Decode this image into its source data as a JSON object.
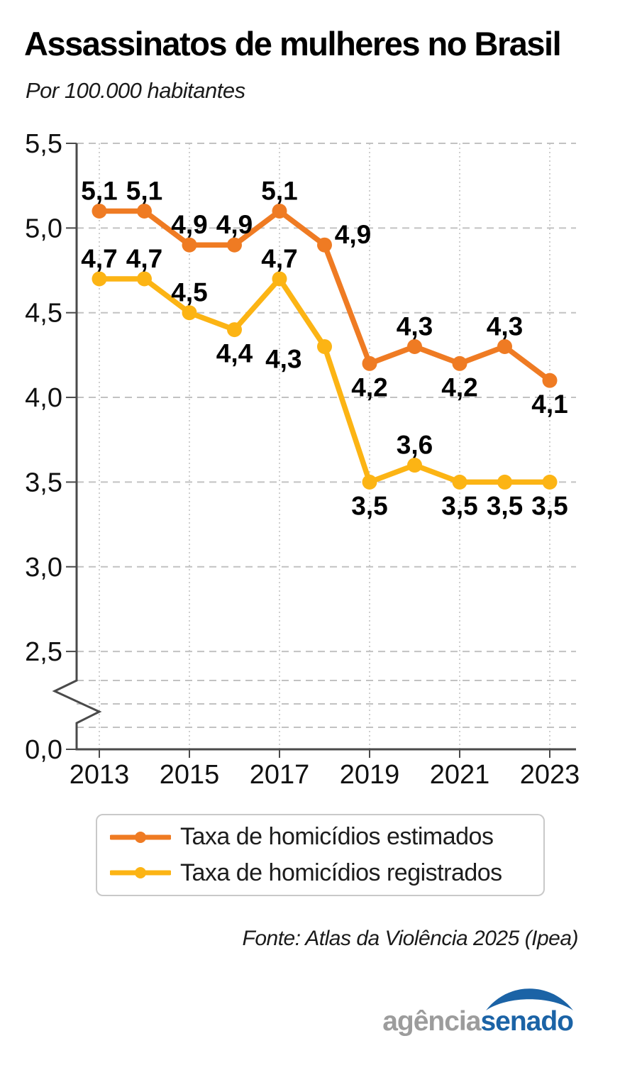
{
  "title": "Assassinatos de mulheres no Brasil",
  "subtitle": "Por 100.000 habitantes",
  "source": "Fonte: Atlas da Violência 2025 (Ipea)",
  "logo": {
    "part1": "agência",
    "part2": "senado",
    "gray": "#9c9c9c",
    "blue": "#1b63a6"
  },
  "chart_data": {
    "type": "line",
    "title": "Assassinatos de mulheres no Brasil",
    "subtitle": "Por 100.000 habitantes",
    "xlabel": "",
    "ylabel": "Por 100.000 habitantes",
    "x": [
      2013,
      2014,
      2015,
      2016,
      2017,
      2018,
      2019,
      2020,
      2021,
      2022,
      2023
    ],
    "x_tick_labels": [
      "2013",
      "2015",
      "2017",
      "2019",
      "2021",
      "2023"
    ],
    "x_tick_years": [
      2013,
      2015,
      2017,
      2019,
      2021,
      2023
    ],
    "y_tick_values": [
      5.5,
      5.0,
      4.5,
      4.0,
      3.5,
      3.0,
      2.5
    ],
    "y_tick_labels": [
      "5,5",
      "5,0",
      "4,5",
      "4,0",
      "3,5",
      "3,0",
      "2,5"
    ],
    "y_zero_label": "0,0",
    "ylim": [
      0.0,
      5.5
    ],
    "axis_break": {
      "between": [
        0.0,
        2.5
      ]
    },
    "grid": true,
    "legend_position": "bottom",
    "decimal_separator": ",",
    "series": [
      {
        "name": "Taxa de homicídios estimados",
        "color": "#ef7b23",
        "values": [
          5.1,
          5.1,
          4.9,
          4.9,
          5.1,
          4.9,
          4.2,
          4.3,
          4.2,
          4.3,
          4.1
        ],
        "labels": [
          "5,1",
          "5,1",
          "4,9",
          "4,9",
          "5,1",
          "4,9",
          "4,2",
          "4,3",
          "4,2",
          "4,3",
          "4,1"
        ],
        "label_pos": [
          "above",
          "above",
          "above",
          "above",
          "above",
          "right",
          "below",
          "above",
          "below",
          "above",
          "below"
        ]
      },
      {
        "name": "Taxa de homicídios registrados",
        "color": "#fcb414",
        "values": [
          4.7,
          4.7,
          4.5,
          4.4,
          4.7,
          4.3,
          3.5,
          3.6,
          3.5,
          3.5,
          3.5
        ],
        "labels": [
          "4,7",
          "4,7",
          "4,5",
          "4,4",
          "4,7",
          "4,3",
          "3,5",
          "3,6",
          "3,5",
          "3,5",
          "3,5"
        ],
        "label_pos": [
          "above",
          "above",
          "above",
          "below",
          "above",
          "below-left",
          "below",
          "above",
          "below",
          "below",
          "below"
        ]
      }
    ]
  }
}
